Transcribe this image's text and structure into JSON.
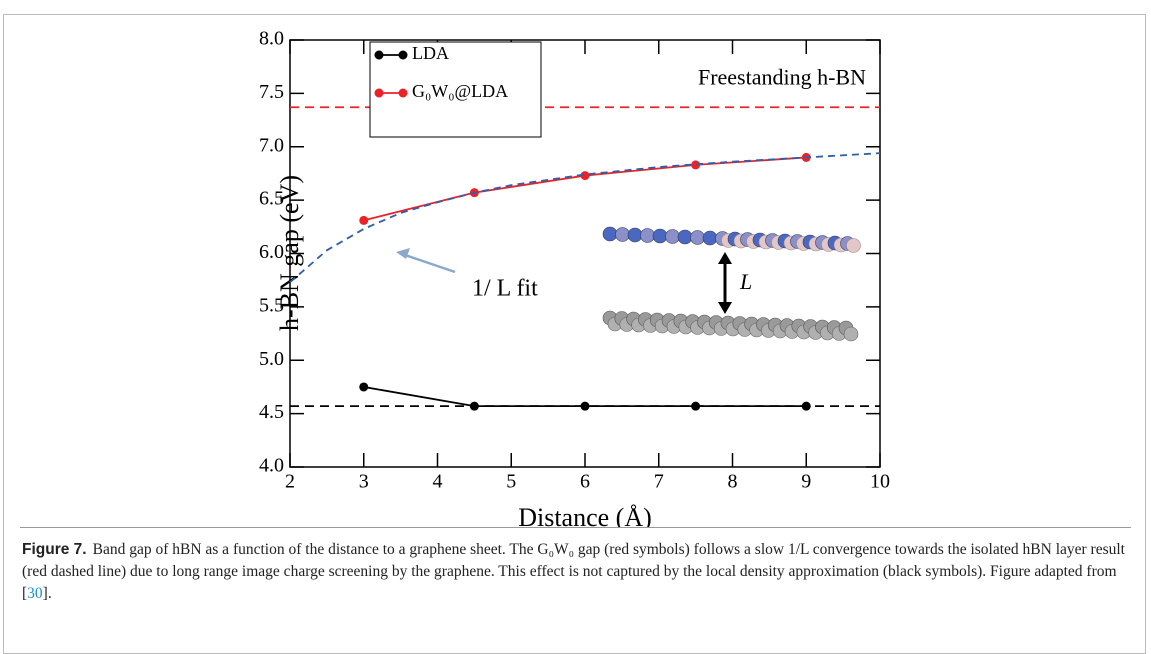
{
  "chart_data": {
    "type": "line",
    "x_label": "Distance (Å)",
    "y_label": "h-BN gap (eV)",
    "xlim": [
      2,
      10
    ],
    "xticks": [
      2,
      3,
      4,
      5,
      6,
      7,
      8,
      9,
      10
    ],
    "ylim": [
      4,
      8
    ],
    "yticks": [
      {
        "value": 4,
        "label": "4.0"
      },
      {
        "value": 4.5,
        "label": "4.5"
      },
      {
        "value": 5,
        "label": "5.0"
      },
      {
        "value": 5.5,
        "label": "5.5"
      },
      {
        "value": 6,
        "label": "6.0"
      },
      {
        "value": 6.5,
        "label": "6.5"
      },
      {
        "value": 7,
        "label": "7.0"
      },
      {
        "value": 7.5,
        "label": "7.5"
      },
      {
        "value": 8,
        "label": "8.0"
      }
    ],
    "legend": "upper left",
    "x": [
      3,
      4.5,
      6,
      7.5,
      9
    ],
    "series": [
      {
        "name": "LDA",
        "color": "#000000",
        "values": [
          4.75,
          4.57,
          4.57,
          4.57,
          4.57
        ]
      },
      {
        "name": "G₀W₀@LDA",
        "color": "#e8232a",
        "values": [
          6.31,
          6.57,
          6.73,
          6.83,
          6.9
        ]
      }
    ],
    "fit": {
      "x": [
        2,
        2.5,
        3,
        3.5,
        4,
        4.5,
        5,
        6,
        7,
        8,
        9,
        10
      ],
      "values": [
        5.73,
        6.03,
        6.23,
        6.38,
        6.48,
        6.57,
        6.64,
        6.74,
        6.81,
        6.86,
        6.9,
        6.94
      ],
      "color": "#2e5fa8",
      "label": "1/ L fit"
    },
    "hlines": [
      {
        "value": 7.37,
        "color": "#e8232a",
        "label": "Freestanding h-BN"
      },
      {
        "value": 4.57,
        "color": "#000000"
      }
    ],
    "inset_label": "L"
  },
  "caption": {
    "label": "Figure 7.",
    "text": "Band gap of hBN as a function of the distance to a graphene sheet. The G₀W₀ gap (red symbols) follows a slow 1/L convergence towards the isolated hBN layer result (red dashed line) due to long range image charge screening by the graphene. This effect is not captured by the local density approximation (black symbols). Figure adapted from [",
    "ref": "30",
    "text_end": "]."
  }
}
